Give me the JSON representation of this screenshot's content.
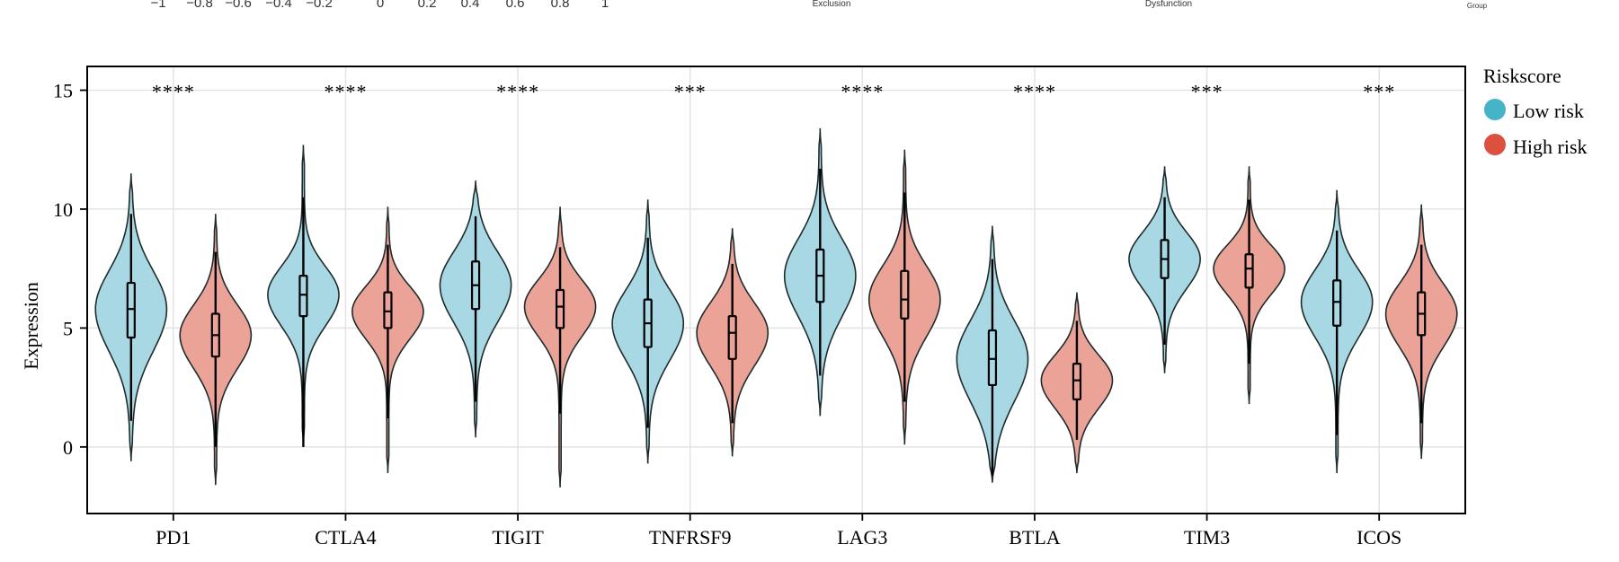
{
  "top_strip": {
    "corr_ticks": [
      "−1",
      "−0.8",
      "−0.6",
      "−0.4",
      "−0.2",
      "0",
      "0.2",
      "0.4",
      "0.6",
      "0.8",
      "1"
    ],
    "labels": [
      "Exclusion",
      "Dysfunction",
      "Group"
    ]
  },
  "colors": {
    "low": "#a8d8e3",
    "high": "#eba398",
    "legend_low": "#45b3c8",
    "legend_high": "#dd5040",
    "stroke": "#1f2b2b"
  },
  "chart_data": {
    "type": "violin",
    "title": "",
    "xlabel": "",
    "ylabel": "Expression",
    "ylim": [
      -2.8,
      16
    ],
    "yticks": [
      0,
      5,
      10,
      15
    ],
    "grid": true,
    "legend": {
      "title": "Riskscore",
      "entries": [
        "Low risk",
        "High risk"
      ],
      "position": "right"
    },
    "categories": [
      "PD1",
      "CTLA4",
      "TIGIT",
      "TNFRSF9",
      "LAG3",
      "BTLA",
      "TIM3",
      "ICOS"
    ],
    "significance": [
      "****",
      "****",
      "****",
      "***",
      "****",
      "****",
      "***",
      "***"
    ],
    "series": [
      {
        "name": "Low risk",
        "groups": [
          {
            "min": -0.6,
            "q1": 4.6,
            "median": 5.8,
            "q3": 6.9,
            "max": 11.5,
            "whisker_low": 1.1,
            "whisker_high": 9.8
          },
          {
            "min": 0.0,
            "q1": 5.5,
            "median": 6.4,
            "q3": 7.2,
            "max": 12.7,
            "whisker_low": 0.0,
            "whisker_high": 10.5
          },
          {
            "min": 0.4,
            "q1": 5.8,
            "median": 6.8,
            "q3": 7.8,
            "max": 11.2,
            "whisker_low": 1.9,
            "whisker_high": 9.7
          },
          {
            "min": -0.7,
            "q1": 4.2,
            "median": 5.2,
            "q3": 6.2,
            "max": 10.4,
            "whisker_low": 0.8,
            "whisker_high": 8.8
          },
          {
            "min": 1.3,
            "q1": 6.1,
            "median": 7.2,
            "q3": 8.3,
            "max": 13.4,
            "whisker_low": 3.0,
            "whisker_high": 11.7
          },
          {
            "min": -1.5,
            "q1": 2.6,
            "median": 3.7,
            "q3": 4.9,
            "max": 9.3,
            "whisker_low": -1.2,
            "whisker_high": 7.9
          },
          {
            "min": 3.1,
            "q1": 7.1,
            "median": 7.9,
            "q3": 8.7,
            "max": 11.8,
            "whisker_low": 4.3,
            "whisker_high": 10.5
          },
          {
            "min": -1.1,
            "q1": 5.1,
            "median": 6.1,
            "q3": 7.0,
            "max": 10.8,
            "whisker_low": 0.5,
            "whisker_high": 9.1
          }
        ]
      },
      {
        "name": "High risk",
        "groups": [
          {
            "min": -1.6,
            "q1": 3.8,
            "median": 4.7,
            "q3": 5.6,
            "max": 9.8,
            "whisker_low": 0.0,
            "whisker_high": 8.2
          },
          {
            "min": -1.1,
            "q1": 5.0,
            "median": 5.7,
            "q3": 6.5,
            "max": 10.1,
            "whisker_low": 1.2,
            "whisker_high": 8.5
          },
          {
            "min": -1.7,
            "q1": 5.0,
            "median": 5.9,
            "q3": 6.6,
            "max": 10.1,
            "whisker_low": 1.4,
            "whisker_high": 8.4
          },
          {
            "min": -0.4,
            "q1": 3.7,
            "median": 4.8,
            "q3": 5.5,
            "max": 9.2,
            "whisker_low": 1.0,
            "whisker_high": 7.7
          },
          {
            "min": 0.1,
            "q1": 5.4,
            "median": 6.2,
            "q3": 7.4,
            "max": 12.5,
            "whisker_low": 1.9,
            "whisker_high": 10.7
          },
          {
            "min": -1.1,
            "q1": 2.0,
            "median": 2.8,
            "q3": 3.5,
            "max": 6.5,
            "whisker_low": 0.3,
            "whisker_high": 5.3
          },
          {
            "min": 1.8,
            "q1": 6.7,
            "median": 7.5,
            "q3": 8.1,
            "max": 11.8,
            "whisker_low": 3.5,
            "whisker_high": 10.4
          },
          {
            "min": -0.5,
            "q1": 4.7,
            "median": 5.6,
            "q3": 6.5,
            "max": 10.2,
            "whisker_low": 1.0,
            "whisker_high": 8.5
          }
        ]
      }
    ]
  }
}
